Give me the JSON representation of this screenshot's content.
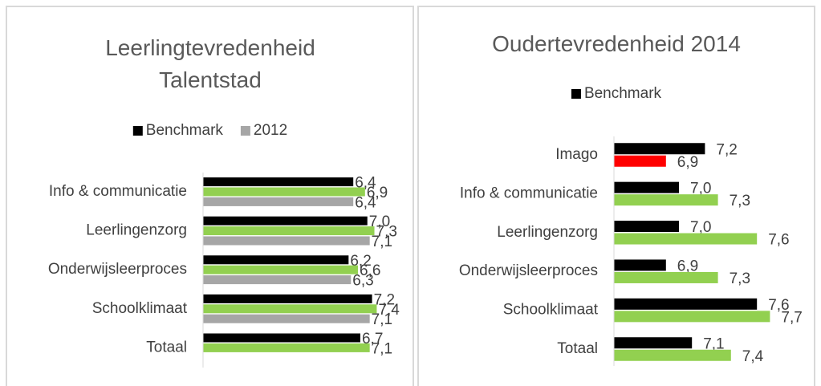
{
  "chart_data": [
    {
      "type": "bar",
      "orientation": "horizontal",
      "title": "Leerlingtevredenheid Talentstad",
      "categories": [
        "Info & communicatie",
        "Leerlingenzorg",
        "Onderwijsleerproces",
        "Schoolklimaat",
        "Totaal"
      ],
      "series": [
        {
          "name": "Benchmark",
          "color": "#000000",
          "values": [
            6.4,
            7.0,
            6.2,
            7.2,
            6.7
          ],
          "value_labels": [
            "6,4",
            "7,0",
            "6,2",
            "7,2",
            "6,7"
          ]
        },
        {
          "color": "#92d050",
          "values": [
            6.9,
            7.3,
            6.6,
            7.4,
            7.1
          ],
          "value_labels": [
            "6,9",
            "7,3",
            "6,6",
            "7,4",
            "7,1"
          ]
        },
        {
          "name": "2012",
          "color": "#a6a6a6",
          "values": [
            6.4,
            7.1,
            6.3,
            7.1,
            null
          ],
          "value_labels": [
            "6,4",
            "7,1",
            "6,3",
            "7,1",
            null
          ]
        }
      ],
      "xlim": [
        0,
        8
      ]
    },
    {
      "type": "bar",
      "orientation": "horizontal",
      "title": "Oudertevredenheid 2014",
      "categories": [
        "Imago",
        "Info & communicatie",
        "Leerlingenzorg",
        "Onderwijsleerproces",
        "Schoolklimaat",
        "Totaal"
      ],
      "series": [
        {
          "name": "Benchmark",
          "color": "#000000",
          "values": [
            7.2,
            7.0,
            7.0,
            6.9,
            7.6,
            7.1
          ],
          "value_labels": [
            "7,2",
            "7,0",
            "7,0",
            "6,9",
            "7,6",
            "7,1"
          ]
        },
        {
          "color": "#92d050",
          "colors": [
            "#ff0000",
            "#92d050",
            "#92d050",
            "#92d050",
            "#92d050",
            "#92d050"
          ],
          "values": [
            6.9,
            7.3,
            7.6,
            7.3,
            7.7,
            7.4
          ],
          "value_labels": [
            "6,9",
            "7,3",
            "7,6",
            "7,3",
            "7,7",
            "7,4"
          ]
        }
      ],
      "xlim": [
        6.5,
        8
      ]
    }
  ]
}
